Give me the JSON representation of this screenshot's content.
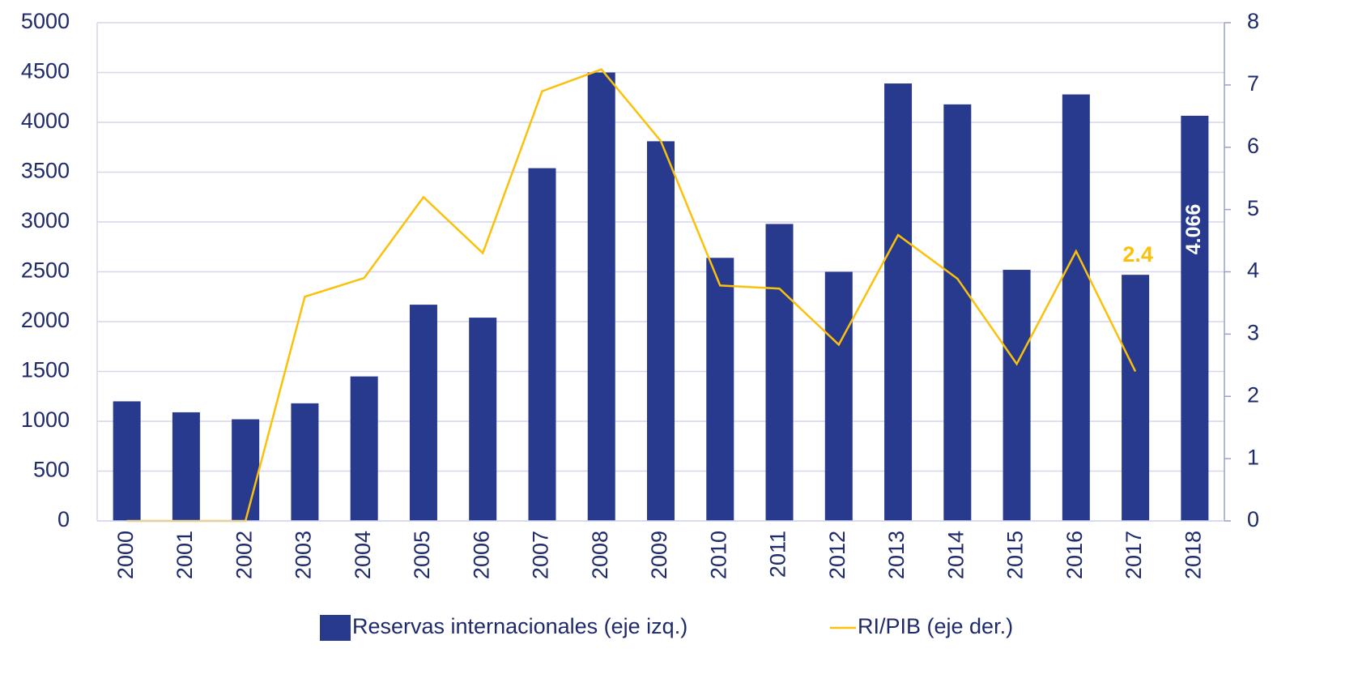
{
  "chart_data": {
    "type": "bar-line",
    "categories": [
      "2000",
      "2001",
      "2002",
      "2003",
      "2004",
      "2005",
      "2006",
      "2007",
      "2008",
      "2009",
      "2010",
      "2011",
      "2012",
      "2013",
      "2014",
      "2015",
      "2016",
      "2017",
      "2018"
    ],
    "series": [
      {
        "name": "Reservas internacionales (eje izq.)",
        "type": "bar",
        "color": "#283a8e",
        "values": [
          1200,
          1090,
          1020,
          1180,
          1450,
          2170,
          2040,
          3540,
          4500,
          3810,
          2640,
          2980,
          2500,
          4390,
          4180,
          2520,
          4280,
          2470,
          4066
        ],
        "value_labels": [
          null,
          null,
          null,
          null,
          null,
          null,
          null,
          null,
          null,
          null,
          null,
          null,
          null,
          null,
          null,
          null,
          null,
          null,
          "4.066"
        ]
      },
      {
        "name": "RI/PIB (eje der.)",
        "type": "line",
        "axis": "y2",
        "color": "#fbc10a",
        "values": [
          0,
          0,
          0,
          3.6,
          3.9,
          5.2,
          4.3,
          6.9,
          7.25,
          6.1,
          3.78,
          3.73,
          2.83,
          4.59,
          3.89,
          2.52,
          4.33,
          2.4,
          null
        ],
        "value_labels": [
          null,
          null,
          null,
          null,
          null,
          null,
          null,
          null,
          null,
          null,
          null,
          null,
          null,
          null,
          null,
          null,
          null,
          "2.4",
          null
        ]
      }
    ],
    "ylim": [
      0,
      5000
    ],
    "yticks": [
      0,
      500,
      1000,
      1500,
      2000,
      2500,
      3000,
      3500,
      4000,
      4500,
      5000
    ],
    "y2lim": [
      0,
      8
    ],
    "y2ticks": [
      0,
      1,
      2,
      3,
      4,
      5,
      6,
      7,
      8
    ],
    "grid": true,
    "legend": "bottom"
  }
}
